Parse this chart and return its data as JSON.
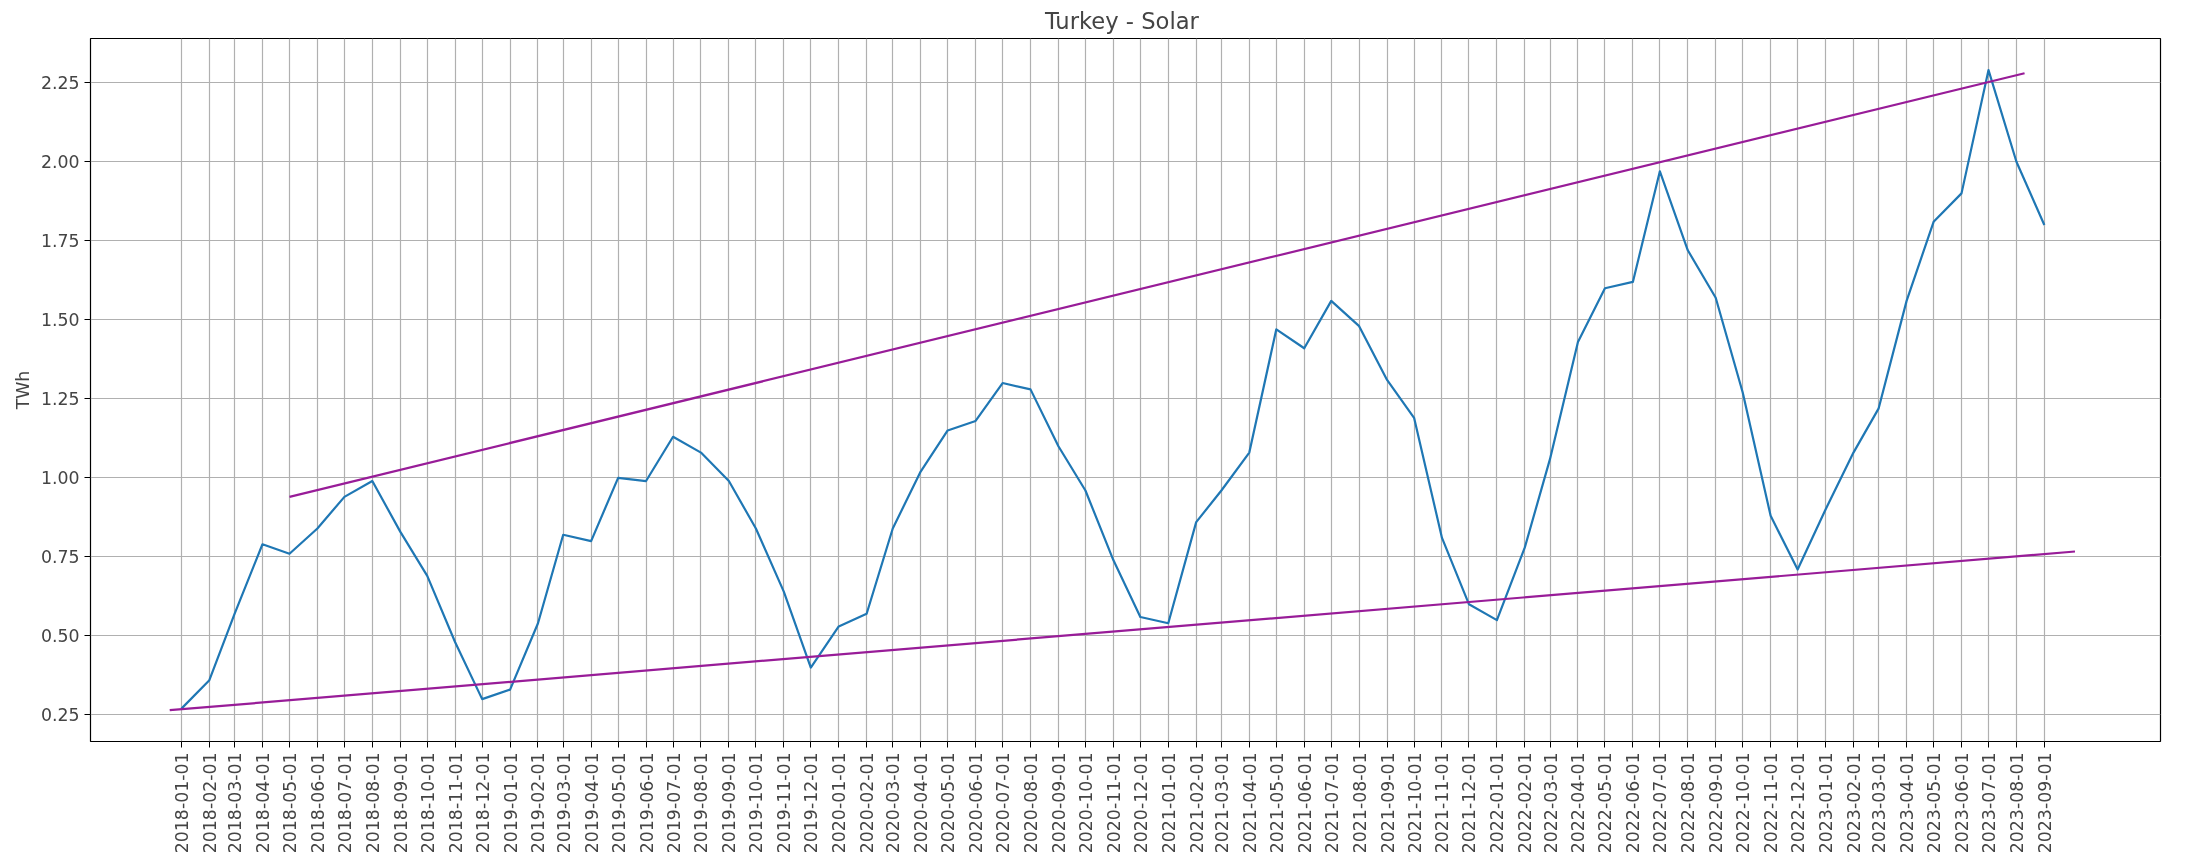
{
  "chart_data": {
    "type": "line",
    "title": "Turkey -  Solar",
    "ylabel": "TWh",
    "x": [
      "2018-01-01",
      "2018-02-01",
      "2018-03-01",
      "2018-04-01",
      "2018-05-01",
      "2018-06-01",
      "2018-07-01",
      "2018-08-01",
      "2018-09-01",
      "2018-10-01",
      "2018-11-01",
      "2018-12-01",
      "2019-01-01",
      "2019-02-01",
      "2019-03-01",
      "2019-04-01",
      "2019-05-01",
      "2019-06-01",
      "2019-07-01",
      "2019-08-01",
      "2019-09-01",
      "2019-10-01",
      "2019-11-01",
      "2019-12-01",
      "2020-01-01",
      "2020-02-01",
      "2020-03-01",
      "2020-04-01",
      "2020-05-01",
      "2020-06-01",
      "2020-07-01",
      "2020-08-01",
      "2020-09-01",
      "2020-10-01",
      "2020-11-01",
      "2020-12-01",
      "2021-01-01",
      "2021-02-01",
      "2021-03-01",
      "2021-04-01",
      "2021-05-01",
      "2021-06-01",
      "2021-07-01",
      "2021-08-01",
      "2021-09-01",
      "2021-10-01",
      "2021-11-01",
      "2021-12-01",
      "2022-01-01",
      "2022-02-01",
      "2022-03-01",
      "2022-04-01",
      "2022-05-01",
      "2022-06-01",
      "2022-07-01",
      "2022-08-01",
      "2022-09-01",
      "2022-10-01",
      "2022-11-01",
      "2022-12-01",
      "2023-01-01",
      "2023-02-01",
      "2023-03-01",
      "2023-04-01",
      "2023-05-01",
      "2023-06-01",
      "2023-07-01",
      "2023-08-01",
      "2023-09-01"
    ],
    "series": [
      {
        "color": "#1f77b4",
        "values": [
          0.27,
          0.36,
          0.57,
          0.79,
          0.76,
          0.84,
          0.94,
          0.99,
          0.83,
          0.69,
          0.48,
          0.3,
          0.33,
          0.54,
          0.82,
          0.8,
          1.0,
          0.99,
          1.13,
          1.08,
          0.99,
          0.84,
          0.64,
          0.4,
          0.53,
          0.57,
          0.84,
          1.02,
          1.15,
          1.18,
          1.3,
          1.28,
          1.1,
          0.96,
          0.74,
          0.56,
          0.54,
          0.86,
          0.96,
          1.08,
          1.47,
          1.41,
          1.56,
          1.48,
          1.31,
          1.19,
          0.81,
          0.6,
          0.55,
          0.78,
          1.06,
          1.43,
          1.6,
          1.62,
          1.97,
          1.72,
          1.57,
          1.27,
          0.88,
          0.71,
          0.9,
          1.08,
          1.22,
          1.56,
          1.81,
          1.9,
          2.29,
          2.0,
          1.8
        ]
      },
      {
        "type": "line",
        "color": "#981c98",
        "x": [
          "2018-05-01",
          "2023-08-10"
        ],
        "values": [
          0.94,
          2.28
        ]
      },
      {
        "type": "line",
        "color": "#981c98",
        "x": [
          "2017-12-19",
          "2023-10-05"
        ],
        "values": [
          0.265,
          0.767
        ]
      }
    ],
    "xlim": [
      "2017-09-22",
      "2024-01-08"
    ],
    "xticks": [
      "2018-01-01",
      "2018-02-01",
      "2018-03-01",
      "2018-04-01",
      "2018-05-01",
      "2018-06-01",
      "2018-07-01",
      "2018-08-01",
      "2018-09-01",
      "2018-10-01",
      "2018-11-01",
      "2018-12-01",
      "2019-01-01",
      "2019-02-01",
      "2019-03-01",
      "2019-04-01",
      "2019-05-01",
      "2019-06-01",
      "2019-07-01",
      "2019-08-01",
      "2019-09-01",
      "2019-10-01",
      "2019-11-01",
      "2019-12-01",
      "2020-01-01",
      "2020-02-01",
      "2020-03-01",
      "2020-04-01",
      "2020-05-01",
      "2020-06-01",
      "2020-07-01",
      "2020-08-01",
      "2020-09-01",
      "2020-10-01",
      "2020-11-01",
      "2020-12-01",
      "2021-01-01",
      "2021-02-01",
      "2021-03-01",
      "2021-04-01",
      "2021-05-01",
      "2021-06-01",
      "2021-07-01",
      "2021-08-01",
      "2021-09-01",
      "2021-10-01",
      "2021-11-01",
      "2021-12-01",
      "2022-01-01",
      "2022-02-01",
      "2022-03-01",
      "2022-04-01",
      "2022-05-01",
      "2022-06-01",
      "2022-07-01",
      "2022-08-01",
      "2022-09-01",
      "2022-10-01",
      "2022-11-01",
      "2022-12-01",
      "2023-01-01",
      "2023-02-01",
      "2023-03-01",
      "2023-04-01",
      "2023-05-01",
      "2023-06-01",
      "2023-07-01",
      "2023-08-01",
      "2023-09-01"
    ],
    "ylim": [
      0.166,
      2.39
    ],
    "yticks": [
      {
        "value": 0.25,
        "label": "0.25"
      },
      {
        "value": 0.5,
        "label": "0.50"
      },
      {
        "value": 0.75,
        "label": "0.75"
      },
      {
        "value": 1.0,
        "label": "1.00"
      },
      {
        "value": 1.25,
        "label": "1.25"
      },
      {
        "value": 1.5,
        "label": "1.50"
      },
      {
        "value": 1.75,
        "label": "1.75"
      },
      {
        "value": 2.0,
        "label": "2.00"
      },
      {
        "value": 2.25,
        "label": "2.25"
      }
    ],
    "grid": true
  }
}
